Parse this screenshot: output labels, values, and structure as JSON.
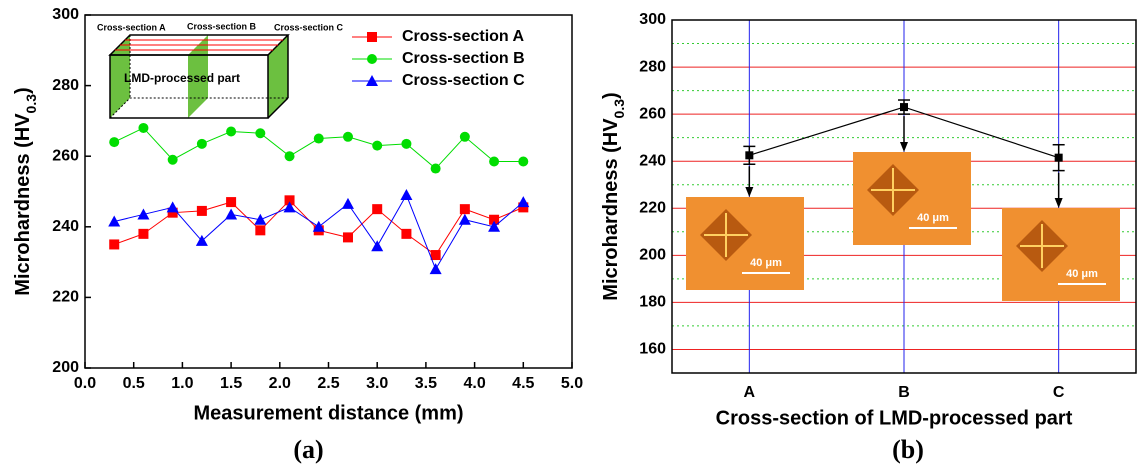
{
  "chart_data": [
    {
      "type": "line",
      "x_label": "Measurement distance (mm)",
      "y_label": [
        "Microhardness (HV",
        "0.3",
        ")"
      ],
      "panel_label": "(a)",
      "inset_labels": [
        "Cross-section A",
        "Cross-section B",
        "Cross-section C",
        "LMD-processed part"
      ],
      "x": [
        0.3,
        0.6,
        0.9,
        1.2,
        1.5,
        1.8,
        2.1,
        2.4,
        2.7,
        3.0,
        3.3,
        3.6,
        3.9,
        4.2,
        4.5
      ],
      "series": [
        {
          "name": "Cross-section A",
          "color": "#ff0000",
          "marker": "square",
          "values": [
            235,
            238,
            244,
            244.5,
            247,
            239,
            247.5,
            239,
            237,
            245,
            238,
            232,
            245,
            242,
            245.5
          ]
        },
        {
          "name": "Cross-section B",
          "color": "#00dd00",
          "marker": "circle",
          "values": [
            264,
            268,
            259,
            263.5,
            267,
            266.5,
            260,
            265,
            265.5,
            263,
            263.5,
            256.5,
            265.5,
            258.5,
            258.5
          ]
        },
        {
          "name": "Cross-section C",
          "color": "#0000ff",
          "marker": "triangle",
          "values": [
            241.5,
            243.5,
            245.5,
            236,
            243.5,
            242,
            245.5,
            240,
            246.5,
            234.5,
            249,
            228,
            242,
            240,
            247
          ]
        }
      ],
      "xlim": [
        0,
        5
      ],
      "xticks": [
        {
          "value": 0,
          "label": "0.0"
        },
        0.5,
        {
          "value": 1,
          "label": "1.0"
        },
        1.5,
        {
          "value": 2,
          "label": "2.0"
        },
        2.5,
        {
          "value": 3,
          "label": "3.0"
        },
        3.5,
        {
          "value": 4,
          "label": "4.0"
        },
        4.5,
        {
          "value": 5,
          "label": "5.0"
        }
      ],
      "ylim": [
        200,
        300
      ],
      "yticks": [
        200,
        220,
        240,
        260,
        280,
        300
      ],
      "legend": "upper right"
    },
    {
      "type": "errorbar",
      "x_label": "Cross-section of LMD-processed part",
      "y_label": [
        "Microhardness (HV",
        "0.3",
        ")"
      ],
      "panel_label": "(b)",
      "categories": [
        "A",
        "B",
        "C"
      ],
      "values": [
        242.5,
        263,
        241.5
      ],
      "errors": [
        3.8,
        3,
        5.5
      ],
      "image_labels": [
        "40 μm",
        "40 μm",
        "40 μm"
      ],
      "color": "#000000",
      "ylim": [
        150,
        300
      ],
      "yticks": [
        160,
        180,
        200,
        220,
        240,
        260,
        280,
        300
      ],
      "minor_yticks": [
        170,
        190,
        210,
        230,
        250,
        270,
        290
      ],
      "grid": true
    }
  ]
}
